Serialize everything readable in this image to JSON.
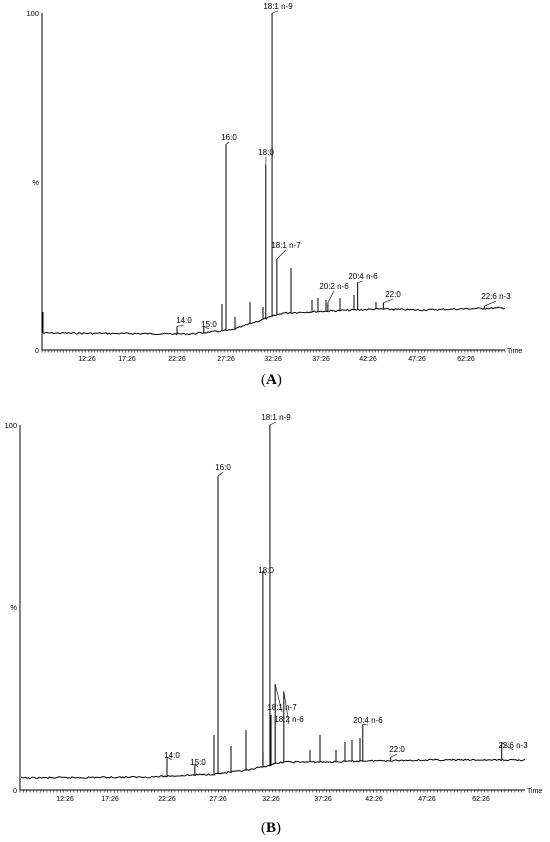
{
  "chart_data": [
    {
      "type": "line",
      "panel": "A",
      "xlabel": "Time",
      "ylabel": "%",
      "ylim": [
        0,
        100
      ],
      "y_ticks": [
        "100",
        "%",
        "0"
      ],
      "x_tick_labels": [
        "12:26",
        "17:26",
        "22:26",
        "27:26",
        "32:26",
        "37:26",
        "42:26",
        "47:26",
        "62:26"
      ],
      "peaks": [
        {
          "label": "14:0",
          "time": "22:26",
          "value": 7
        },
        {
          "label": "15:0",
          "time": "25:10",
          "value": 7
        },
        {
          "label": "16:0",
          "time": "27:26",
          "value": 61
        },
        {
          "label": "18:0",
          "time": "31:40",
          "value": 55
        },
        {
          "label": "18:1 n-9",
          "time": "32:20",
          "value": 100
        },
        {
          "label": "18:1 n-7",
          "time": "32:50",
          "value": 27
        },
        {
          "label": "20:2 n-6",
          "time": "38:10",
          "value": 14
        },
        {
          "label": "20:4 n-6",
          "time": "41:20",
          "value": 20
        },
        {
          "label": "22:0",
          "time": "44:00",
          "value": 14
        },
        {
          "label": "22:6 n-3",
          "time": "66:00",
          "value": 13
        }
      ]
    },
    {
      "type": "line",
      "panel": "B",
      "xlabel": "Time",
      "ylabel": "%",
      "ylim": [
        0,
        100
      ],
      "y_ticks": [
        "100",
        "%",
        "0"
      ],
      "x_tick_labels": [
        "12:26",
        "17:26",
        "22:26",
        "27:26",
        "32:26",
        "37:26",
        "42:26",
        "47:26",
        "62:26"
      ],
      "peaks": [
        {
          "label": "14:0",
          "time": "22:26",
          "value": 9
        },
        {
          "label": "15:0",
          "time": "25:10",
          "value": 7
        },
        {
          "label": "16:0",
          "time": "27:26",
          "value": 86
        },
        {
          "label": "18:0",
          "time": "31:40",
          "value": 60
        },
        {
          "label": "18:1 n-9",
          "time": "32:20",
          "value": 100
        },
        {
          "label": "18:1 n-7",
          "time": "32:50",
          "value": 29
        },
        {
          "label": "18:2 n-6",
          "time": "33:40",
          "value": 27
        },
        {
          "label": "20:4 n-6",
          "time": "41:20",
          "value": 18
        },
        {
          "label": "22:0",
          "time": "44:00",
          "value": 9
        },
        {
          "label": "22:6 n-3",
          "time": "66:00",
          "value": 13
        }
      ]
    }
  ],
  "captions": [
    "A",
    "B"
  ]
}
